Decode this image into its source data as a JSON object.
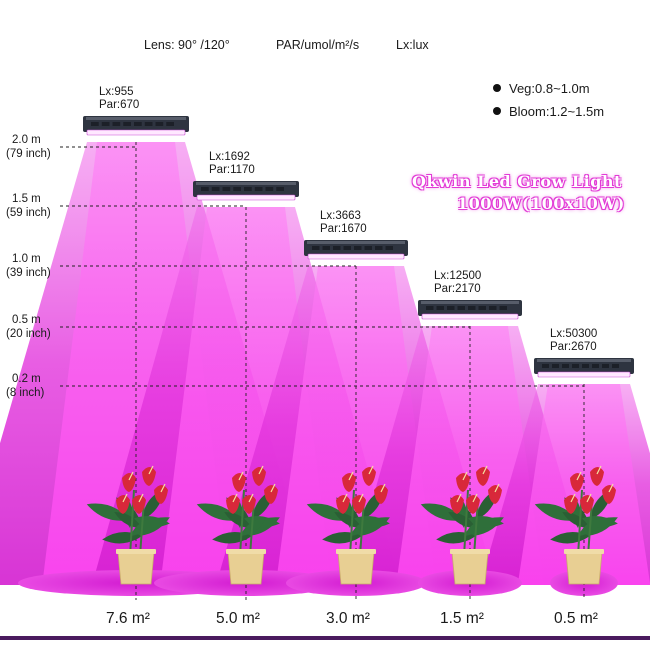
{
  "header": {
    "lens": "Lens: 90° /120°",
    "par_unit": "PAR/umol/m²/s",
    "lx_unit": "Lx:lux"
  },
  "legend": {
    "veg": "Veg:0.8~1.0m",
    "bloom": "Bloom:1.2~1.5m"
  },
  "title": {
    "line1": "Qkwin Led Grow Light",
    "line2": "1000W(100x10W)"
  },
  "height_ticks": [
    {
      "m": "2.0 m",
      "inch": "(79 inch)",
      "value_m": 2.0
    },
    {
      "m": "1.5 m",
      "inch": "(59 inch)",
      "value_m": 1.5
    },
    {
      "m": "1.0 m",
      "inch": "(39 inch)",
      "value_m": 1.0
    },
    {
      "m": "0.5 m",
      "inch": "(20 inch)",
      "value_m": 0.5
    },
    {
      "m": "0.2 m",
      "inch": "(8 inch)",
      "value_m": 0.2
    }
  ],
  "lights": [
    {
      "lx": "Lx:955",
      "par": "Par:670",
      "area": "7.6 m²",
      "height_m": 2.0
    },
    {
      "lx": "Lx:1692",
      "par": "Par:1170",
      "area": "5.0 m²",
      "height_m": 1.5
    },
    {
      "lx": "Lx:3663",
      "par": "Par:1670",
      "area": "3.0 m²",
      "height_m": 1.0
    },
    {
      "lx": "Lx:12500",
      "par": "Par:2170",
      "area": "1.5 m²",
      "height_m": 0.5
    },
    {
      "lx": "Lx:50300",
      "par": "Par:2670",
      "area": "0.5 m²",
      "height_m": 0.2
    }
  ],
  "colors": {
    "light_beam": "#e82fe0",
    "beam_edge": "#fbd0f6",
    "lamp_body": "#2e3440",
    "leaf": "#2f6f3a",
    "flower": "#d8283a",
    "pot": "#e8cf93",
    "title_stroke": "#e23bd6",
    "baseline": "#4a1a5e"
  }
}
